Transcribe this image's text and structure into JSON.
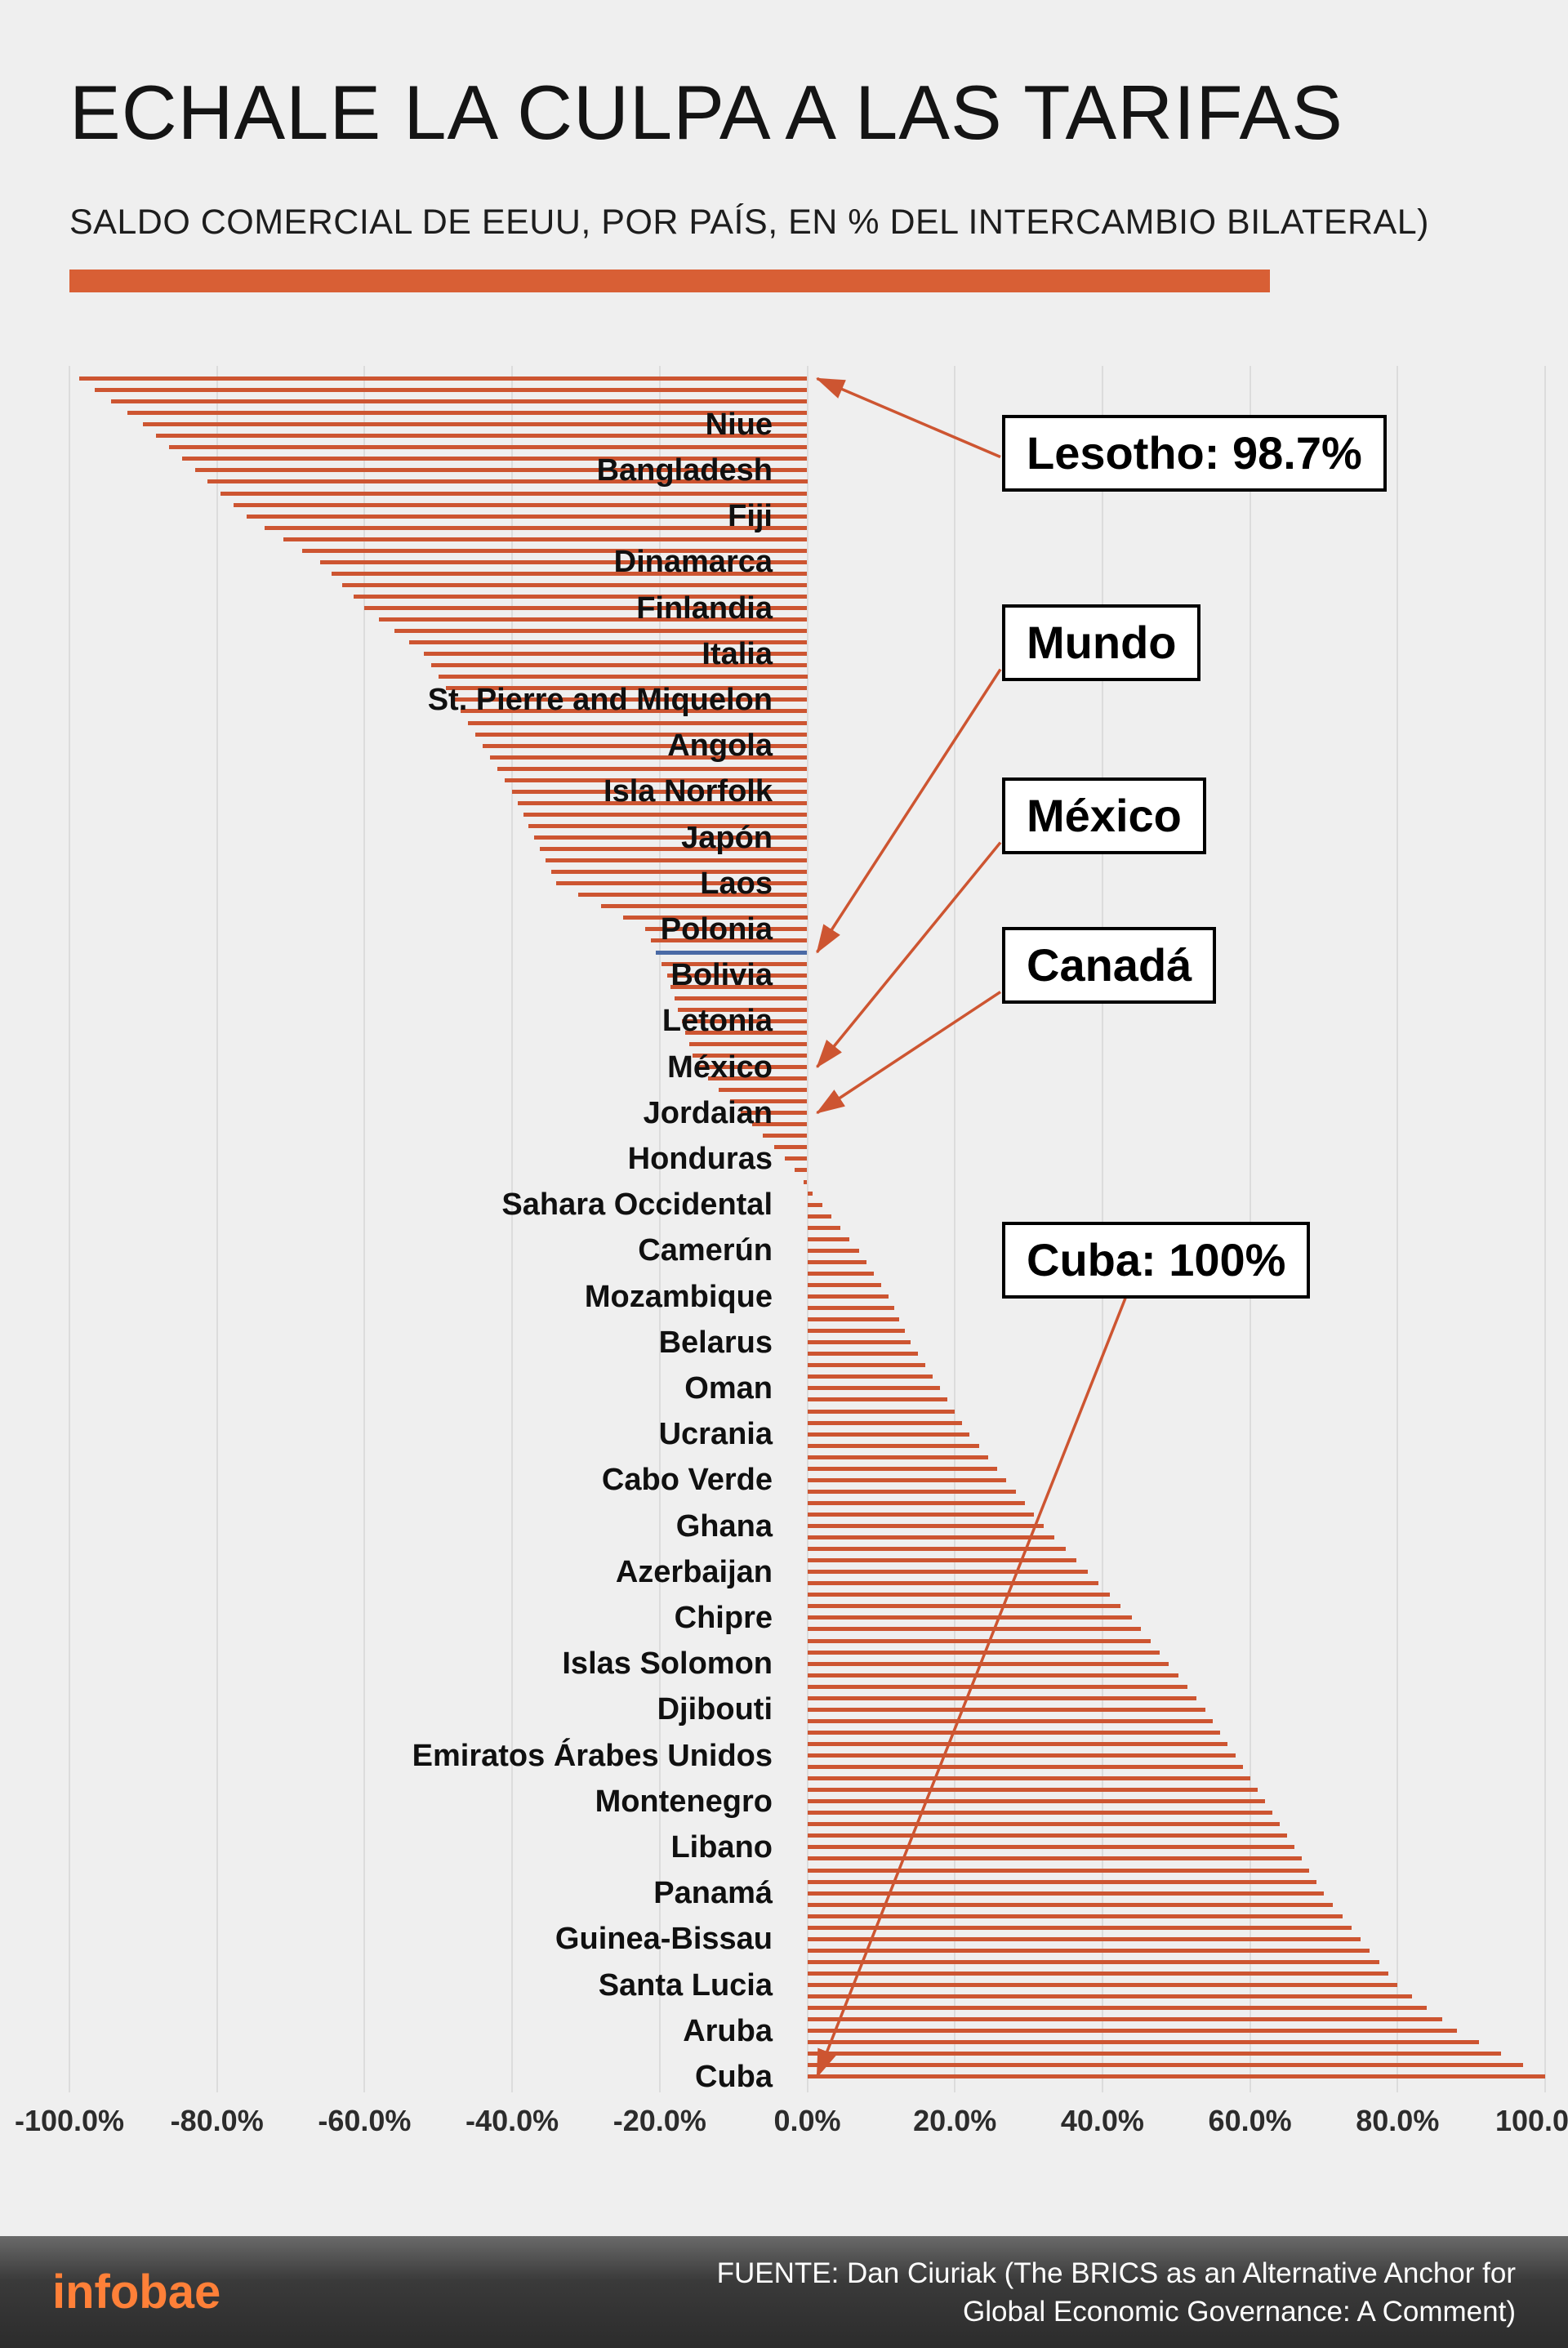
{
  "chart_data": {
    "type": "bar",
    "orientation": "horizontal",
    "title": "ECHALE LA CULPA A LAS TARIFAS",
    "subtitle": "SALDO COMERCIAL DE EEUU, POR PAÍS, EN % DEL INTERCAMBIO BILATERAL)",
    "unit": "% del intercambio bilateral",
    "xlim": [
      -100,
      100
    ],
    "grid": true,
    "x_ticks": [
      {
        "label": "-100.0%",
        "value": -100
      },
      {
        "label": "-80.0%",
        "value": -80
      },
      {
        "label": "-60.0%",
        "value": -60
      },
      {
        "label": "-40.0%",
        "value": -40
      },
      {
        "label": "-20.0%",
        "value": -20
      },
      {
        "label": "0.0%",
        "value": 0
      },
      {
        "label": "20.0%",
        "value": 20
      },
      {
        "label": "40.0%",
        "value": 40
      },
      {
        "label": "60.0%",
        "value": 60
      },
      {
        "label": "80.0%",
        "value": 80
      },
      {
        "label": "100.0%",
        "value": 100
      }
    ],
    "total_bars": 149,
    "first_label_index": 4,
    "label_step": 4,
    "top_bar": {
      "label": "Lesotho",
      "value": -98.7
    },
    "world_bar": {
      "label": "Mundo",
      "value": -20.5,
      "index": 50
    },
    "bottom_bar": {
      "label": "Cuba",
      "value": 100
    },
    "labeled_countries": [
      {
        "label": "Niue",
        "value": -90
      },
      {
        "label": "Bangladesh",
        "value": -83
      },
      {
        "label": "Fiji",
        "value": -76
      },
      {
        "label": "Dinamarca",
        "value": -66
      },
      {
        "label": "Finlandia",
        "value": -60
      },
      {
        "label": "Italia",
        "value": -52
      },
      {
        "label": "St. Pierre and Miquelon",
        "value": -48
      },
      {
        "label": "Angola",
        "value": -44
      },
      {
        "label": "Isla Norfolk",
        "value": -40
      },
      {
        "label": "Japón",
        "value": -37
      },
      {
        "label": "Laos",
        "value": -34
      },
      {
        "label": "Polonia",
        "value": -22
      },
      {
        "label": "Bolivia",
        "value": -19
      },
      {
        "label": "Letonia",
        "value": -17
      },
      {
        "label": "México",
        "value": -15
      },
      {
        "label": "Jordaian",
        "value": -9
      },
      {
        "label": "Honduras",
        "value": -3
      },
      {
        "label": "Sahara Occidental",
        "value": 2
      },
      {
        "label": "Camerún",
        "value": 7
      },
      {
        "label": "Mozambique",
        "value": 11
      },
      {
        "label": "Belarus",
        "value": 14
      },
      {
        "label": "Oman",
        "value": 18
      },
      {
        "label": "Ucrania",
        "value": 22
      },
      {
        "label": "Cabo Verde",
        "value": 27
      },
      {
        "label": "Ghana",
        "value": 32
      },
      {
        "label": "Azerbaijan",
        "value": 38
      },
      {
        "label": "Chipre",
        "value": 44
      },
      {
        "label": "Islas Solomon",
        "value": 49
      },
      {
        "label": "Djibouti",
        "value": 54
      },
      {
        "label": "Emiratos Árabes Unidos",
        "value": 58
      },
      {
        "label": "Montenegro",
        "value": 62
      },
      {
        "label": "Libano",
        "value": 66
      },
      {
        "label": "Panamá",
        "value": 70
      },
      {
        "label": "Guinea-Bissau",
        "value": 75
      },
      {
        "label": "Santa Lucia",
        "value": 80
      },
      {
        "label": "Aruba",
        "value": 88
      },
      {
        "label": "Cuba",
        "value": 100
      }
    ],
    "annotations": [
      {
        "id": "lesotho",
        "text": "Lesotho: 98.7%",
        "target_index": 0
      },
      {
        "id": "mundo",
        "text": "Mundo",
        "target_index": 50
      },
      {
        "id": "mexico",
        "text": "México",
        "target_index": 60
      },
      {
        "id": "canada",
        "text": "Canadá",
        "target_index": 64
      },
      {
        "id": "cuba",
        "text": "Cuba: 100%",
        "target_index": 148
      }
    ]
  },
  "colors": {
    "bar": "#cd5531",
    "highlight": "#4a6aa5",
    "accent_rule": "#d85f35",
    "grid": "#dcdcdc",
    "background": "#efefef",
    "footer_brand": "#ff8038",
    "callout_border": "#000000"
  },
  "footer": {
    "brand": "infobae",
    "source_line1": "FUENTE: Dan Ciuriak (The BRICS as an Alternative Anchor for",
    "source_line2": "Global Economic Governance: A Comment)"
  }
}
